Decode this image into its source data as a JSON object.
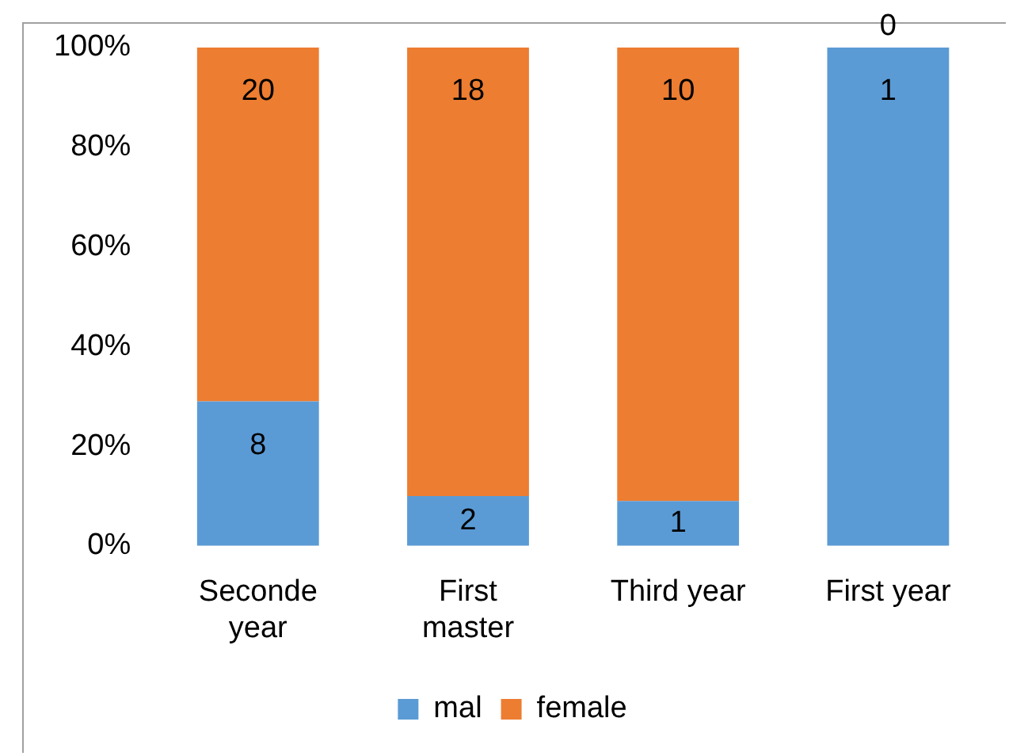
{
  "chart_data": {
    "type": "bar",
    "stacked": true,
    "categories": [
      "Seconde year",
      "First master",
      "Third year",
      "First year"
    ],
    "series": [
      {
        "name": "mal",
        "color": "#5b9bd5",
        "values": [
          29,
          10,
          9,
          100
        ]
      },
      {
        "name": "female",
        "color": "#ed7d31",
        "values": [
          71,
          90,
          91,
          0
        ]
      }
    ],
    "annotations": [
      {
        "text": "8",
        "x": "Seconde year",
        "y": 29
      },
      {
        "text": "2",
        "x": "First master",
        "y": 10
      },
      {
        "text": "1",
        "x": "Third year",
        "y": 9
      },
      {
        "text": "1",
        "x": "First year",
        "y": 100
      },
      {
        "text": "20",
        "x": "Seconde year",
        "y": 100
      },
      {
        "text": "18",
        "x": "First master",
        "y": 100
      },
      {
        "text": "10",
        "x": "Third year",
        "y": 100
      },
      {
        "text": "0",
        "x": "First year",
        "y": 100
      }
    ],
    "ylim": [
      0,
      100
    ],
    "yticks": [
      {
        "value": 0,
        "label": "0%"
      },
      {
        "value": 20,
        "label": "20%"
      },
      {
        "value": 40,
        "label": "40%"
      },
      {
        "value": 60,
        "label": "60%"
      },
      {
        "value": 80,
        "label": "80%"
      },
      {
        "value": 100,
        "label": "100%"
      }
    ],
    "grid": false,
    "legend": "bottom"
  }
}
